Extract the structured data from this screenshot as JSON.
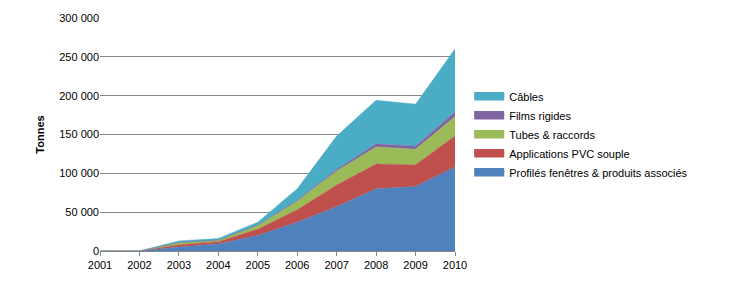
{
  "chart_data": {
    "type": "area",
    "stacked": true,
    "grid": true,
    "legend": "right",
    "y_label": "Tonnes",
    "categories": [
      "2001",
      "2002",
      "2003",
      "2004",
      "2005",
      "2006",
      "2007",
      "2008",
      "2009",
      "2010"
    ],
    "series": [
      {
        "name": "Profilés fenêtres & produits associés",
        "color": "#4f81bd",
        "values": [
          0,
          0,
          5000,
          9000,
          20000,
          37000,
          57000,
          80000,
          83000,
          108000
        ]
      },
      {
        "name": "Applications PVC souple",
        "color": "#c0504d",
        "values": [
          0,
          0,
          3000,
          3000,
          8000,
          16000,
          28000,
          32000,
          28000,
          40000
        ]
      },
      {
        "name": "Tubes & raccords",
        "color": "#9bbb59",
        "values": [
          0,
          0,
          3000,
          2000,
          5000,
          11000,
          18000,
          22000,
          20000,
          25000
        ]
      },
      {
        "name": "Films rigides",
        "color": "#8064a2",
        "values": [
          0,
          0,
          0,
          0,
          500,
          1000,
          2000,
          4000,
          4000,
          6000
        ]
      },
      {
        "name": "Câbles",
        "color": "#4bacc6",
        "values": [
          0,
          0,
          2000,
          2000,
          3500,
          15000,
          43000,
          56000,
          54000,
          81000
        ]
      }
    ],
    "ylim": [
      0,
      300000
    ],
    "yticks": [
      0,
      {
        "value": 50000,
        "label": "50 000"
      },
      {
        "value": 100000,
        "label": "100 000"
      },
      {
        "value": 150000,
        "label": "150 000"
      },
      {
        "value": 200000,
        "label": "200 000"
      },
      {
        "value": 250000,
        "label": "250 000"
      },
      {
        "value": 300000,
        "label": "300 000"
      }
    ]
  }
}
